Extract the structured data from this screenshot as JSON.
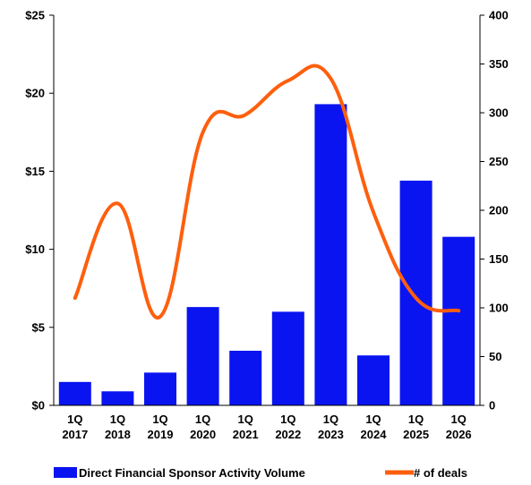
{
  "chart_data": {
    "type": "bar+line",
    "categories": [
      "1Q 2017",
      "1Q 2018",
      "1Q 2019",
      "1Q 2020",
      "1Q 2021",
      "1Q 2022",
      "1Q 2023",
      "1Q 2024",
      "1Q 2025",
      "1Q 2026"
    ],
    "series": [
      {
        "name": "Direct Financial Sponsor Activity Volume",
        "type": "bar",
        "axis": "left",
        "color": "#0a14f0",
        "values": [
          1.5,
          0.9,
          2.1,
          6.3,
          3.5,
          6.0,
          19.3,
          3.2,
          14.4,
          10.8
        ]
      },
      {
        "name": "# of deals",
        "type": "line",
        "axis": "right",
        "color": "#fe5f0d",
        "values": [
          110,
          207,
          91,
          280,
          298,
          333,
          335,
          198,
          110,
          97
        ]
      }
    ],
    "y_left": {
      "ylim": [
        0,
        25
      ],
      "ticks": [
        0,
        5,
        10,
        15,
        20,
        25
      ],
      "tick_labels": [
        "$0",
        "$5",
        "$10",
        "$15",
        "$20",
        "$25"
      ]
    },
    "y_right": {
      "ylim": [
        0,
        400
      ],
      "ticks": [
        0,
        50,
        100,
        150,
        200,
        250,
        300,
        350,
        400
      ],
      "tick_labels": [
        "0",
        "50",
        "100",
        "150",
        "200",
        "250",
        "300",
        "350",
        "400"
      ]
    },
    "grid": false,
    "legend_position": "bottom"
  }
}
